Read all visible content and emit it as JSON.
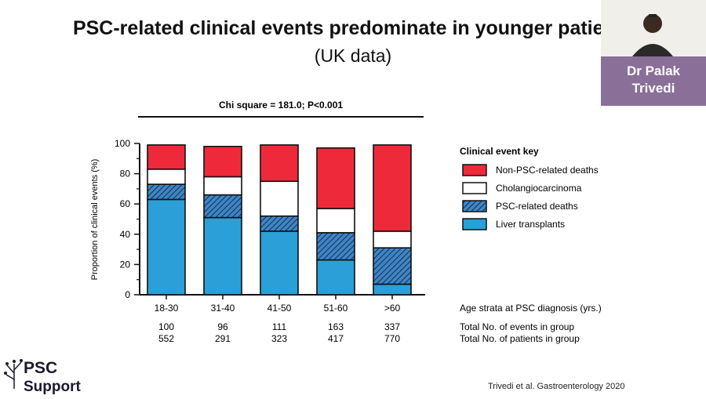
{
  "slide": {
    "title": "PSC-related clinical events predominate in younger patients",
    "subtitle": "(UK data)",
    "citation": "Trivedi et al. Gastroenterology 2020"
  },
  "speaker": {
    "name_line1": "Dr Palak",
    "name_line2": "Trivedi"
  },
  "logo": {
    "line1": "PSC",
    "line2": "Support"
  },
  "colors": {
    "non_psc_deaths": "#ee2a3a",
    "cholangio": "#ffffff",
    "psc_deaths": "#2f6fae",
    "transplants": "#2a9fd8",
    "namecard": "#8a6f99"
  },
  "chart_data": {
    "type": "bar",
    "stacked": true,
    "title": "Chi square = 181.0; P<0.001",
    "ylabel": "Proportion of clinical events (%)",
    "xlabel": "Age strata at PSC diagnosis (yrs.)",
    "ylim": [
      0,
      100
    ],
    "yticks": [
      "0",
      "20",
      "40",
      "60",
      "80",
      "100"
    ],
    "categories": [
      "18-30",
      "31-40",
      "41-50",
      "51-60",
      ">60"
    ],
    "series": [
      {
        "name": "Liver transplants",
        "values": [
          63,
          51,
          42,
          23,
          7
        ]
      },
      {
        "name": "PSC-related deaths",
        "values": [
          10,
          15,
          10,
          18,
          24
        ]
      },
      {
        "name": "Cholangiocarcinoma",
        "values": [
          10,
          12,
          23,
          16,
          11
        ]
      },
      {
        "name": "Non-PSC-related deaths",
        "values": [
          16,
          20,
          24,
          40,
          57
        ]
      }
    ],
    "legend_title": "Clinical event key",
    "legend": [
      "Non-PSC-related deaths",
      "Cholangiocarcinoma",
      "PSC-related deaths",
      "Liver transplants"
    ],
    "table": {
      "events_label": "Total No. of events in group",
      "patients_label": "Total No. of patients in group",
      "events": [
        "100",
        "96",
        "111",
        "163",
        "337"
      ],
      "patients": [
        "552",
        "291",
        "323",
        "417",
        "770"
      ]
    }
  }
}
